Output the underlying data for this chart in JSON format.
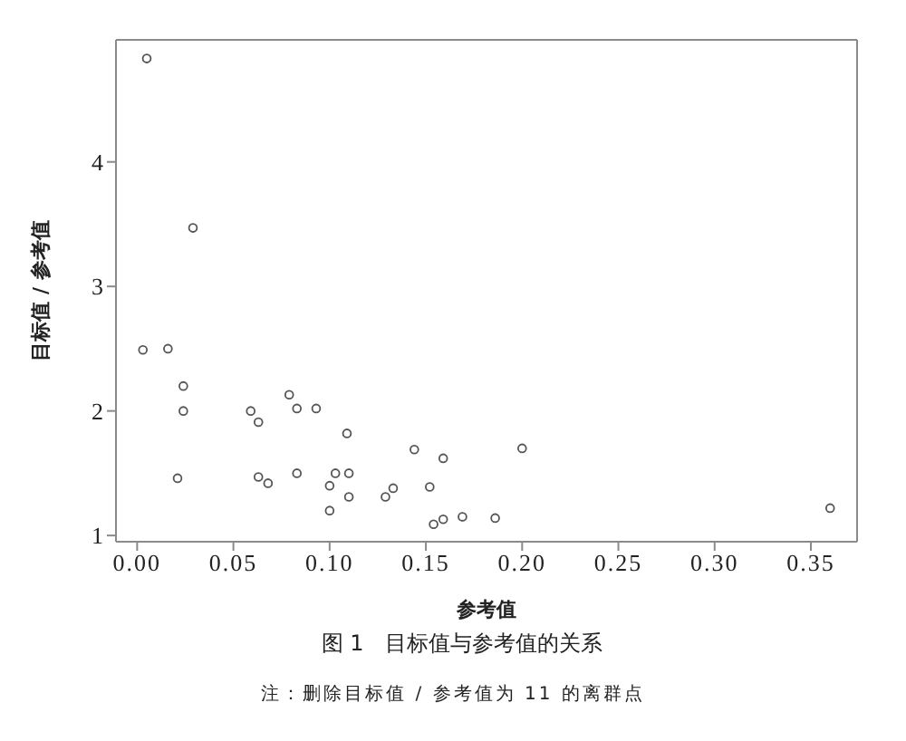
{
  "chart_data": {
    "type": "scatter",
    "title": "图 1　目标值与参考值的关系",
    "xlabel": "参考值",
    "ylabel": "目标值 / 参考值",
    "annotations": [
      "注：删除目标值 / 参考值为 11 的离群点"
    ],
    "x": [
      0.005,
      0.003,
      0.016,
      0.029,
      0.024,
      0.024,
      0.021,
      0.059,
      0.063,
      0.063,
      0.068,
      0.079,
      0.083,
      0.093,
      0.083,
      0.1,
      0.1,
      0.103,
      0.109,
      0.11,
      0.11,
      0.129,
      0.133,
      0.144,
      0.152,
      0.159,
      0.154,
      0.159,
      0.169,
      0.186,
      0.2,
      0.36
    ],
    "values": [
      4.83,
      2.49,
      2.5,
      3.47,
      2.2,
      2.0,
      1.46,
      2.0,
      1.91,
      1.47,
      1.42,
      2.13,
      2.02,
      2.02,
      1.5,
      1.4,
      1.2,
      1.5,
      1.82,
      1.5,
      1.31,
      1.31,
      1.38,
      1.69,
      1.39,
      1.62,
      1.09,
      1.13,
      1.15,
      1.14,
      1.7,
      1.22
    ],
    "color": "#555555",
    "marker": "circle",
    "xlim": [
      -0.011,
      0.374
    ],
    "ylim": [
      0.95,
      4.98
    ],
    "xticks": [
      {
        "value": 0,
        "label": "0.00"
      },
      {
        "value": 0.05,
        "label": "0.05"
      },
      {
        "value": 0.1,
        "label": "0.10"
      },
      {
        "value": 0.15,
        "label": "0.15"
      },
      {
        "value": 0.2,
        "label": "0.20"
      },
      {
        "value": 0.25,
        "label": "0.25"
      },
      {
        "value": 0.3,
        "label": "0.30"
      },
      {
        "value": 0.35,
        "label": "0.35"
      }
    ],
    "yticks": [
      1,
      2,
      3,
      4
    ]
  }
}
